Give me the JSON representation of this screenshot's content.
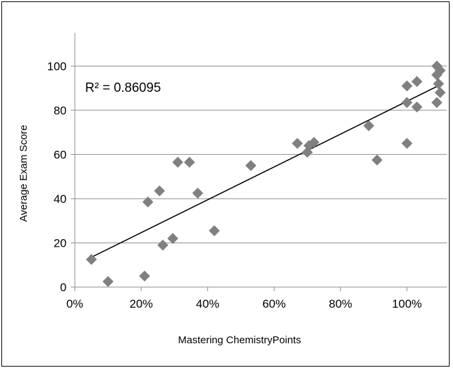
{
  "chart_data": {
    "type": "scatter",
    "title": "",
    "xlabel": "Mastering ChemistryPoints",
    "ylabel": "Average Exam Score",
    "xlim": [
      0,
      1.12
    ],
    "ylim": [
      0,
      115
    ],
    "x_ticks": [
      0,
      0.2,
      0.4,
      0.6,
      0.8,
      1.0
    ],
    "x_tick_labels": [
      "0%",
      "20%",
      "40%",
      "60%",
      "80%",
      "100%"
    ],
    "y_ticks": [
      0,
      20,
      40,
      60,
      80,
      100
    ],
    "y_tick_labels": [
      "0",
      "20",
      "40",
      "60",
      "80",
      "100"
    ],
    "grid": "horizontal",
    "legend": "none",
    "marker": "diamond",
    "marker_color": "#808080",
    "trendline": {
      "type": "linear",
      "x": [
        0.05,
        1.1
      ],
      "y": [
        13.5,
        91.5
      ],
      "color": "#000000"
    },
    "r_squared_label": "R² = 0.86095",
    "points": [
      {
        "x": 0.05,
        "y": 12.5
      },
      {
        "x": 0.1,
        "y": 2.5
      },
      {
        "x": 0.21,
        "y": 5
      },
      {
        "x": 0.22,
        "y": 38.5
      },
      {
        "x": 0.255,
        "y": 43.5
      },
      {
        "x": 0.265,
        "y": 19
      },
      {
        "x": 0.295,
        "y": 22
      },
      {
        "x": 0.31,
        "y": 56.5
      },
      {
        "x": 0.345,
        "y": 56.5
      },
      {
        "x": 0.37,
        "y": 42.5
      },
      {
        "x": 0.42,
        "y": 25.5
      },
      {
        "x": 0.53,
        "y": 55
      },
      {
        "x": 0.67,
        "y": 65
      },
      {
        "x": 0.7,
        "y": 61
      },
      {
        "x": 0.705,
        "y": 64
      },
      {
        "x": 0.72,
        "y": 65.5
      },
      {
        "x": 0.885,
        "y": 73
      },
      {
        "x": 0.91,
        "y": 57.5
      },
      {
        "x": 1.0,
        "y": 91
      },
      {
        "x": 1.0,
        "y": 83.5
      },
      {
        "x": 1.0,
        "y": 65
      },
      {
        "x": 1.03,
        "y": 93
      },
      {
        "x": 1.03,
        "y": 81.5
      },
      {
        "x": 1.09,
        "y": 100
      },
      {
        "x": 1.09,
        "y": 96
      },
      {
        "x": 1.095,
        "y": 92
      },
      {
        "x": 1.1,
        "y": 98
      },
      {
        "x": 1.1,
        "y": 88
      },
      {
        "x": 1.09,
        "y": 83.5
      }
    ]
  }
}
